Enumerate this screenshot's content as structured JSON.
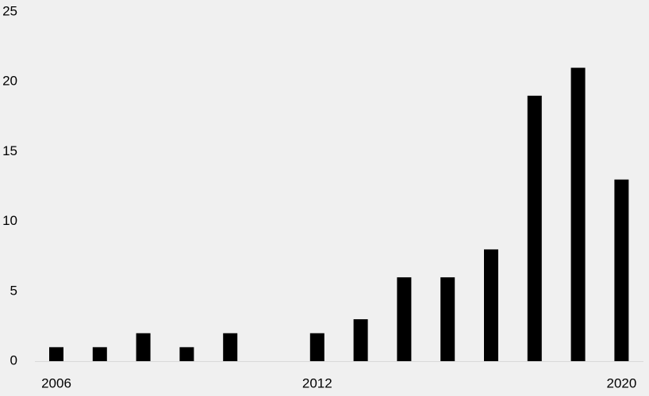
{
  "chart_data": {
    "type": "bar",
    "categories": [
      "2006",
      null,
      null,
      null,
      null,
      null,
      "2012",
      null,
      null,
      null,
      null,
      null,
      null,
      "2020"
    ],
    "values": [
      1,
      1,
      2,
      1,
      2,
      0,
      2,
      3,
      6,
      6,
      8,
      19,
      21,
      13
    ],
    "color": "#000000",
    "ylim": [
      0,
      25
    ],
    "yticks": [
      0,
      5,
      10,
      15,
      20,
      25
    ],
    "grid": false
  }
}
